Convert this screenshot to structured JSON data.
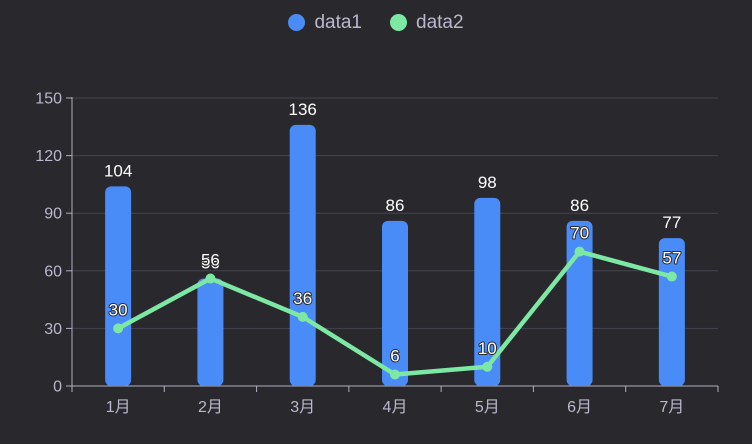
{
  "chart_data": {
    "type": "bar",
    "title": "",
    "xlabel": "",
    "ylabel": "",
    "categories": [
      "1月",
      "2月",
      "3月",
      "4月",
      "5月",
      "6月",
      "7月"
    ],
    "series": [
      {
        "name": "data1",
        "type": "bar",
        "color": "#4a8cf7",
        "values": [
          104,
          56,
          136,
          86,
          98,
          86,
          77
        ]
      },
      {
        "name": "data2",
        "type": "line",
        "color": "#7ce8a4",
        "values": [
          30,
          56,
          36,
          6,
          10,
          70,
          57
        ]
      }
    ],
    "ylim": [
      0,
      150
    ],
    "yticks": [
      0,
      30,
      60,
      90,
      120,
      150
    ],
    "grid": true,
    "legend_position": "top",
    "value_labels": true
  },
  "colors": {
    "background": "#29282c",
    "grid_line": "#45444e",
    "axis_line": "#b0afc4",
    "axis_text": "#b9b8ce",
    "legend_text": "#b9b8ce",
    "value_label_text": "#ffffff",
    "value_label_outline": "#2a2a2e"
  },
  "icons": {
    "legend_marker": "circle"
  }
}
